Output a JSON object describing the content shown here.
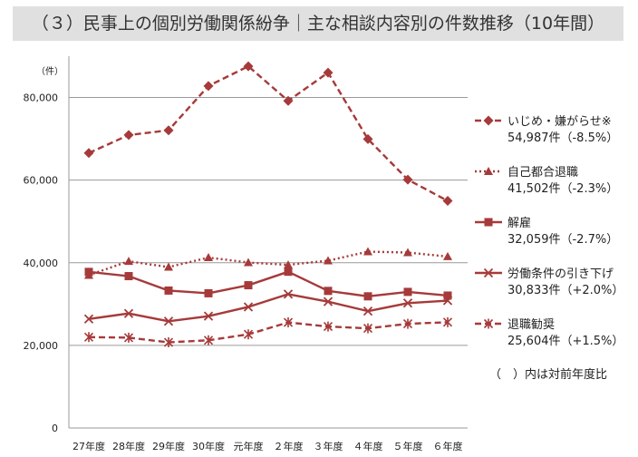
{
  "title": "（３）民事上の個別労働関係紛争｜主な相談内容別の件数推移（10年間）",
  "note": "（　）内は対前年度比",
  "chart_data": {
    "type": "line",
    "yunit": "（件）",
    "ylim": [
      0,
      90000
    ],
    "yticks": [
      0,
      20000,
      40000,
      60000,
      80000
    ],
    "ytick_labels": [
      "0",
      "20,000",
      "40,000",
      "60,000",
      "80,000"
    ],
    "categories": [
      "27年度",
      "28年度",
      "29年度",
      "30年度",
      "元年度",
      "２年度",
      "３年度",
      "４年度",
      "５年度",
      "６年度"
    ],
    "grid": true,
    "legend_position": "right",
    "series": [
      {
        "name": "いじめ・嫌がらせ※",
        "summary": "54,987件（-8.5%）",
        "marker": "diamond",
        "dash": "dashed",
        "color": "#a63a3a",
        "values": [
          66566,
          70917,
          72067,
          82797,
          87570,
          79190,
          86034,
          69932,
          60125,
          54987
        ]
      },
      {
        "name": "自己都合退職",
        "summary": "41,502件（-2.3%）",
        "marker": "triangle",
        "dash": "dotted",
        "color": "#a63a3a",
        "values": [
          37000,
          40364,
          38954,
          41258,
          40051,
          39498,
          40501,
          42694,
          42472,
          41502
        ]
      },
      {
        "name": "解雇",
        "summary": "32,059件（-2.7%）",
        "marker": "square",
        "dash": "solid",
        "color": "#a63a3a",
        "values": [
          37787,
          36760,
          33269,
          32614,
          34561,
          37826,
          33189,
          31872,
          32944,
          32059
        ]
      },
      {
        "name": "労働条件の引き下げ",
        "summary": "30,833件（+2.0%）",
        "marker": "x",
        "dash": "solid",
        "color": "#a63a3a",
        "values": [
          26392,
          27723,
          25841,
          27077,
          29310,
          32396,
          30585,
          28287,
          30234,
          30833
        ]
      },
      {
        "name": "退職勧奨",
        "summary": "25,604件（+1.5%）",
        "marker": "asterisk",
        "dash": "dashed",
        "color": "#a63a3a",
        "values": [
          22000,
          21867,
          20736,
          21234,
          22675,
          25560,
          24560,
          24129,
          25226,
          25604
        ]
      }
    ]
  }
}
